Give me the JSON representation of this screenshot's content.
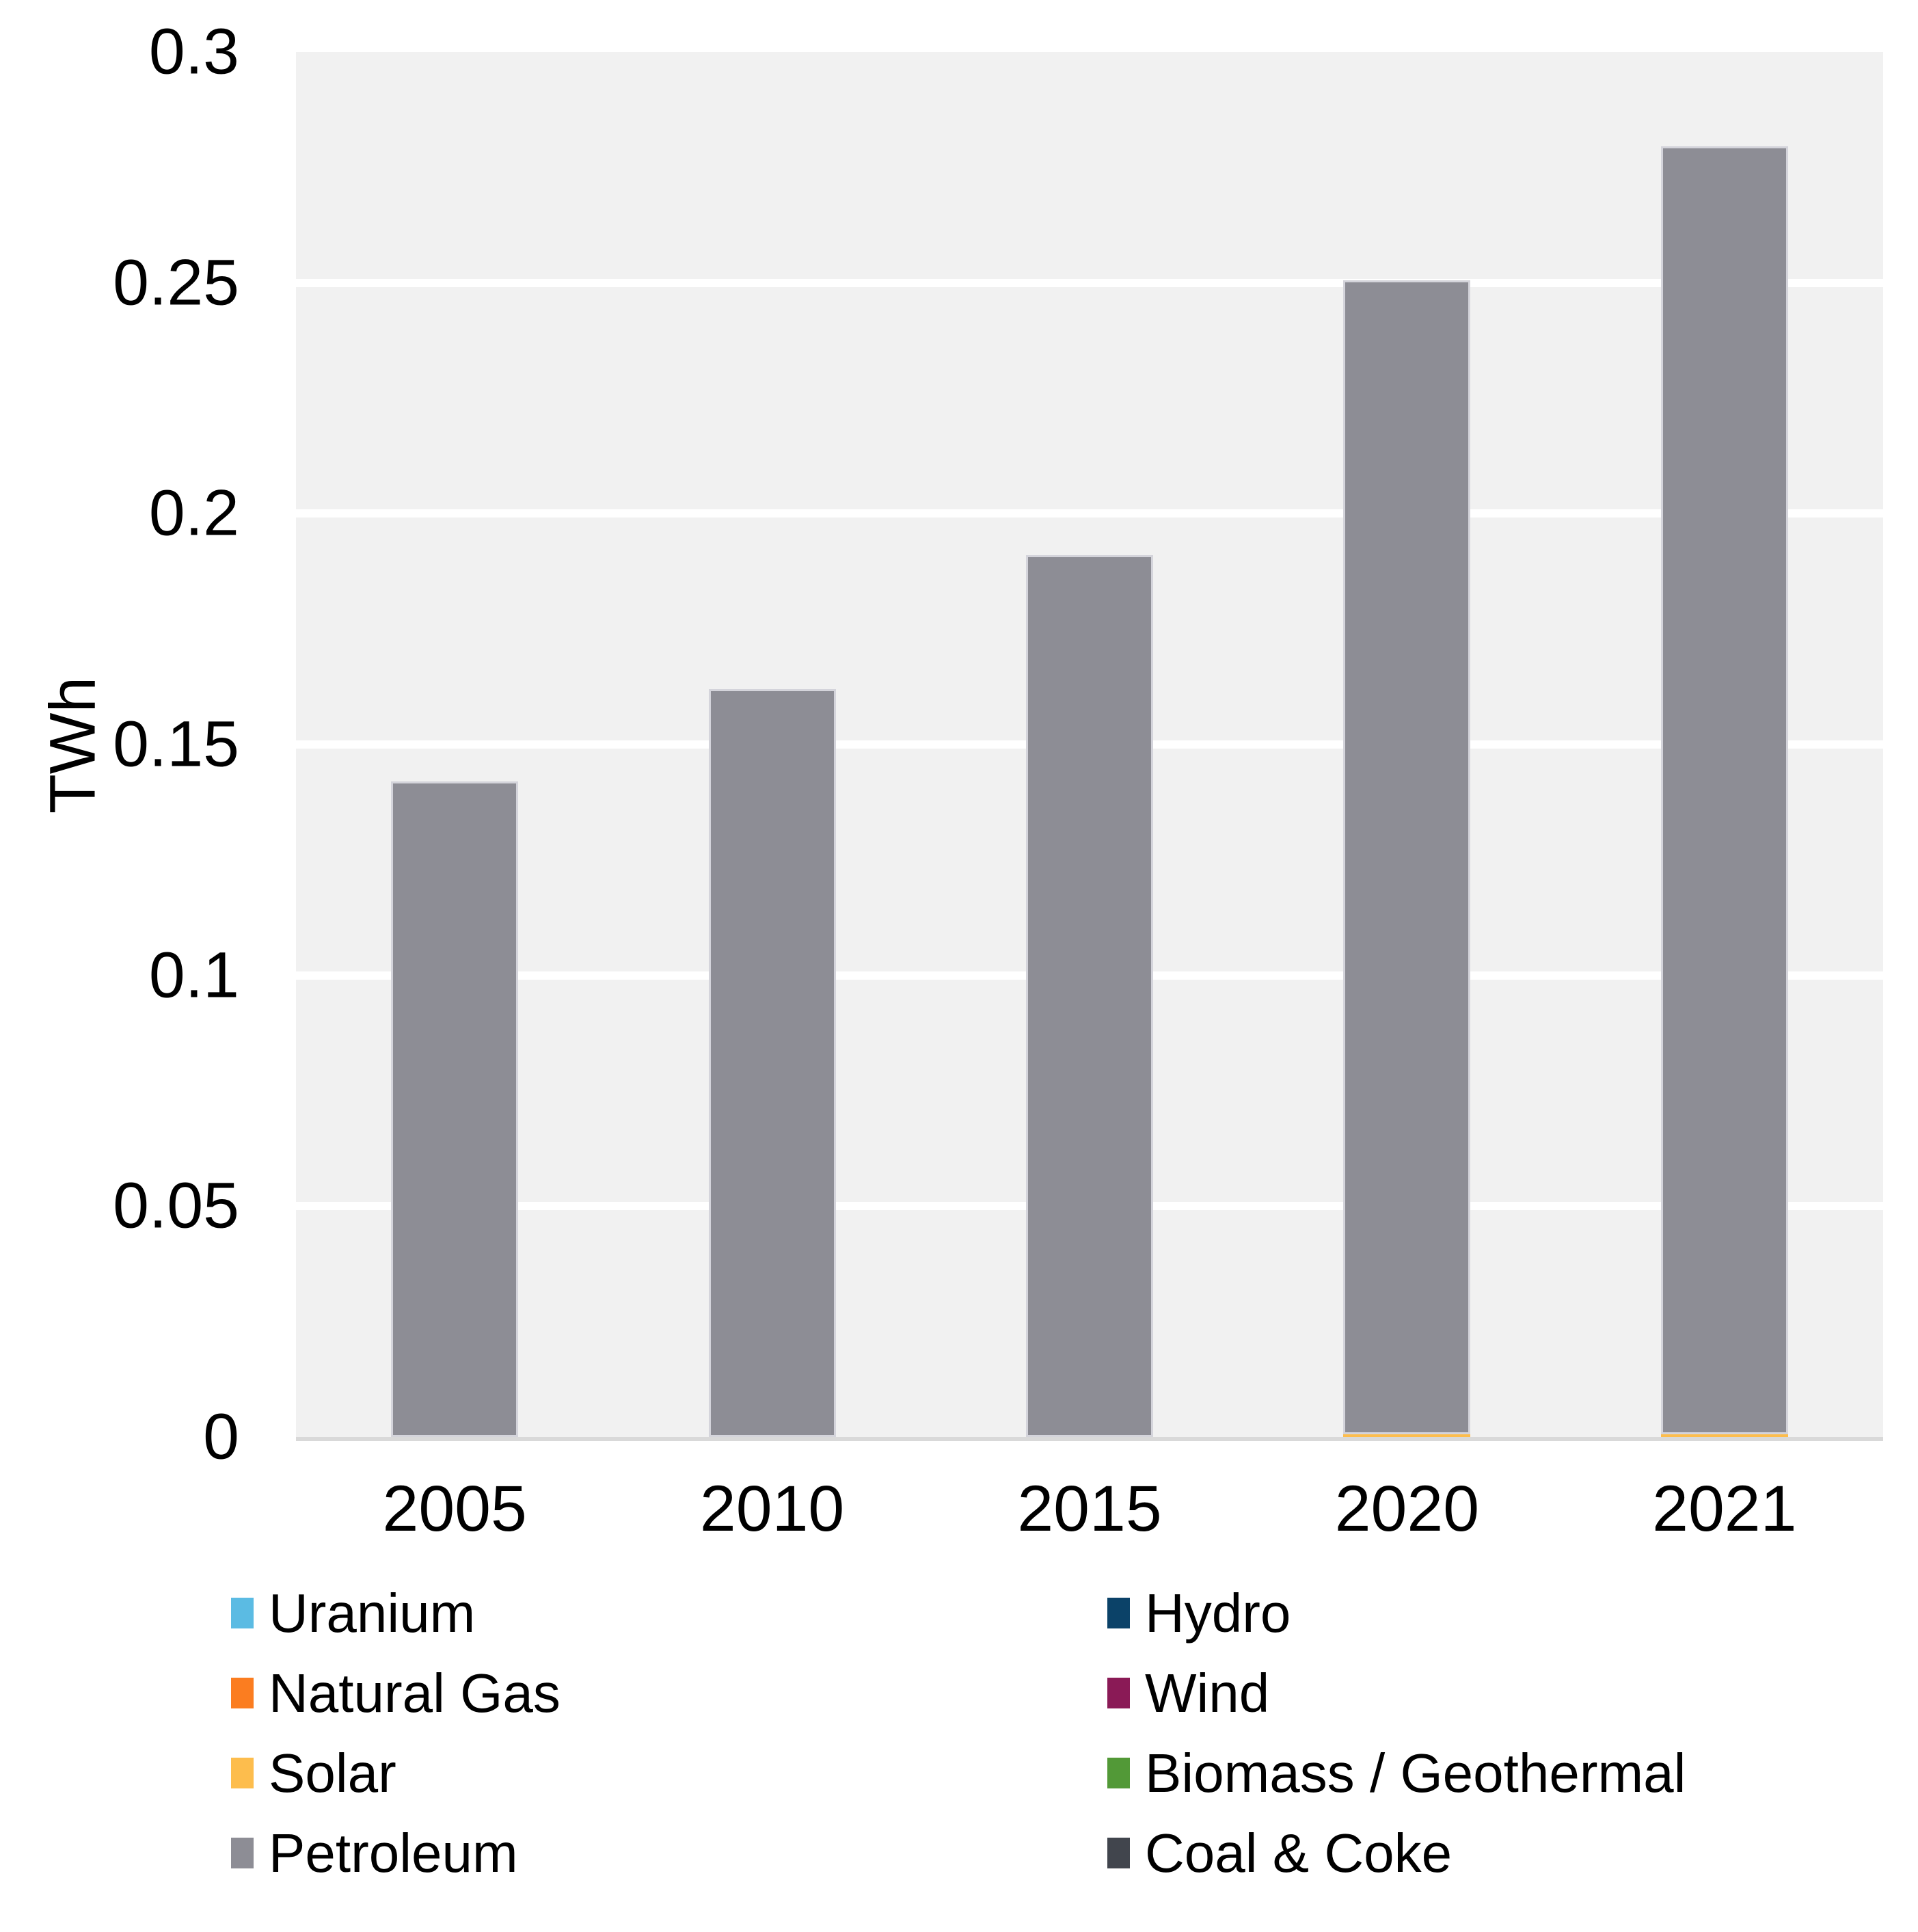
{
  "chart_data": {
    "type": "bar",
    "stacked": true,
    "title": "",
    "xlabel": "",
    "ylabel": "TWh",
    "ylim": [
      0,
      0.3
    ],
    "yticks": [
      {
        "value": 0.3,
        "label": "0.3"
      },
      {
        "value": 0.25,
        "label": "0.25"
      },
      {
        "value": 0.2,
        "label": "0.2"
      },
      {
        "value": 0.15,
        "label": "0.15"
      },
      {
        "value": 0.1,
        "label": "0.1"
      },
      {
        "value": 0.05,
        "label": "0.05"
      },
      {
        "value": 0,
        "label": "0"
      }
    ],
    "categories": [
      "2005",
      "2010",
      "2015",
      "2020",
      "2021"
    ],
    "series": [
      {
        "name": "Uranium",
        "color": "#5bbbe3",
        "values": [
          0,
          0,
          0,
          0,
          0
        ]
      },
      {
        "name": "Natural Gas",
        "color": "#fb7d20",
        "values": [
          0,
          0,
          0,
          0,
          0
        ]
      },
      {
        "name": "Solar",
        "color": "#fdbd4d",
        "values": [
          0,
          0,
          0,
          0.0006,
          0.0006
        ]
      },
      {
        "name": "Petroleum",
        "color": "#8d8d95",
        "values": [
          0.142,
          0.162,
          0.191,
          0.25,
          0.279
        ]
      },
      {
        "name": "Hydro",
        "color": "#0b4268",
        "values": [
          0,
          0,
          0,
          0,
          0
        ]
      },
      {
        "name": "Wind",
        "color": "#8a1a56",
        "values": [
          0,
          0,
          0,
          0,
          0
        ]
      },
      {
        "name": "Biomass / Geothermal",
        "color": "#529937",
        "values": [
          0,
          0,
          0,
          0,
          0
        ]
      },
      {
        "name": "Coal & Coke",
        "color": "#41454d",
        "values": [
          0,
          0,
          0,
          0,
          0
        ]
      }
    ],
    "legend": {
      "position": "bottom",
      "columns": [
        [
          "Uranium",
          "Natural Gas",
          "Solar",
          "Petroleum"
        ],
        [
          "Hydro",
          "Wind",
          "Biomass / Geothermal",
          "Coal & Coke"
        ]
      ]
    },
    "grid": true,
    "plot_background": "#f1f1f1",
    "gridline_color": "#ffffff",
    "axis_line_color": "#d9d9d9",
    "bar_border_color": "#d4d4db",
    "text_color": "#000000"
  }
}
